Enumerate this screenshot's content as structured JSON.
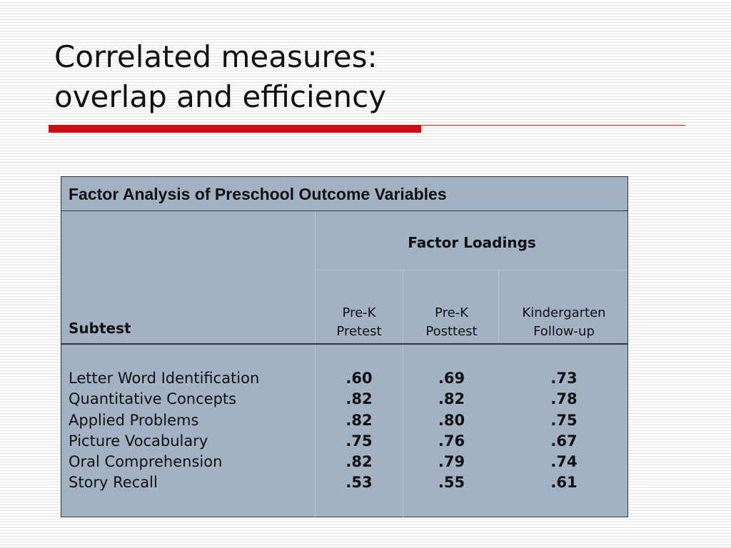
{
  "slide": {
    "title_line1": "Correlated measures:",
    "title_line2": "overlap and efficiency",
    "accent_color": "#d10a11"
  },
  "table": {
    "caption": "Factor Analysis of Preschool Outcome Variables",
    "group_header": "Factor Loadings",
    "row_header": "Subtest",
    "columns": [
      {
        "line1": "Pre-K",
        "line2": "Pretest"
      },
      {
        "line1": "Pre-K",
        "line2": "Posttest"
      },
      {
        "line1": "Kindergarten",
        "line2": "Follow-up"
      }
    ],
    "rows": [
      {
        "label": "Letter Word Identification",
        "values": [
          ".60",
          ".69",
          ".73"
        ]
      },
      {
        "label": "Quantitative Concepts",
        "values": [
          ".82",
          ".82",
          ".78"
        ]
      },
      {
        "label": "Applied Problems",
        "values": [
          ".82",
          ".80",
          ".75"
        ]
      },
      {
        "label": "Picture Vocabulary",
        "values": [
          ".75",
          ".76",
          ".67"
        ]
      },
      {
        "label": "Oral Comprehension",
        "values": [
          ".82",
          ".79",
          ".74"
        ]
      },
      {
        "label": "Story Recall",
        "values": [
          ".53",
          ".55",
          ".61"
        ]
      }
    ],
    "background_color": "#a3b1c5"
  }
}
